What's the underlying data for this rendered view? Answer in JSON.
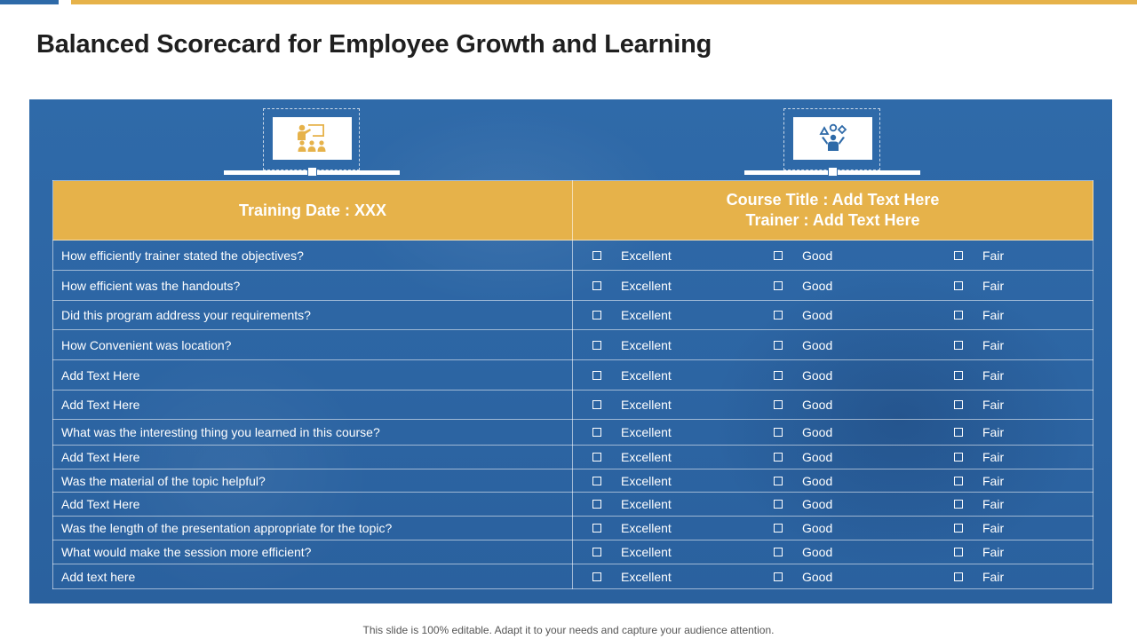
{
  "title": "Balanced Scorecard for Employee Growth and Learning",
  "header": {
    "left": "Training Date : XXX",
    "right_line1": "Course Title : Add Text Here",
    "right_line2": "Trainer : Add Text Here"
  },
  "options": [
    "Excellent",
    "Good",
    "Fair"
  ],
  "rows": [
    {
      "question": "How efficiently trainer stated the objectives?"
    },
    {
      "question": "How efficient was the handouts?"
    },
    {
      "question": "Did this program address your requirements?"
    },
    {
      "question": "How Convenient  was location?"
    },
    {
      "question": "Add Text Here"
    },
    {
      "question": "Add Text Here"
    },
    {
      "question": "What was the interesting thing you learned in this course?"
    },
    {
      "question": "Add Text Here"
    },
    {
      "question": "Was the material of the topic helpful?"
    },
    {
      "question": "Add Text Here"
    },
    {
      "question": "Was the length of the presentation appropriate for the topic?"
    },
    {
      "question": "What would make the session more efficient?"
    },
    {
      "question": "Add text here"
    }
  ],
  "footer": "This slide is 100% editable. Adapt it to your needs and capture your audience attention.",
  "colors": {
    "accent": "#e6b24a",
    "panel": "#2f6aa9",
    "brand_blue": "#2e6aa8"
  },
  "icons": {
    "left": "trainer-presentation-icon",
    "right": "learner-shapes-icon"
  }
}
